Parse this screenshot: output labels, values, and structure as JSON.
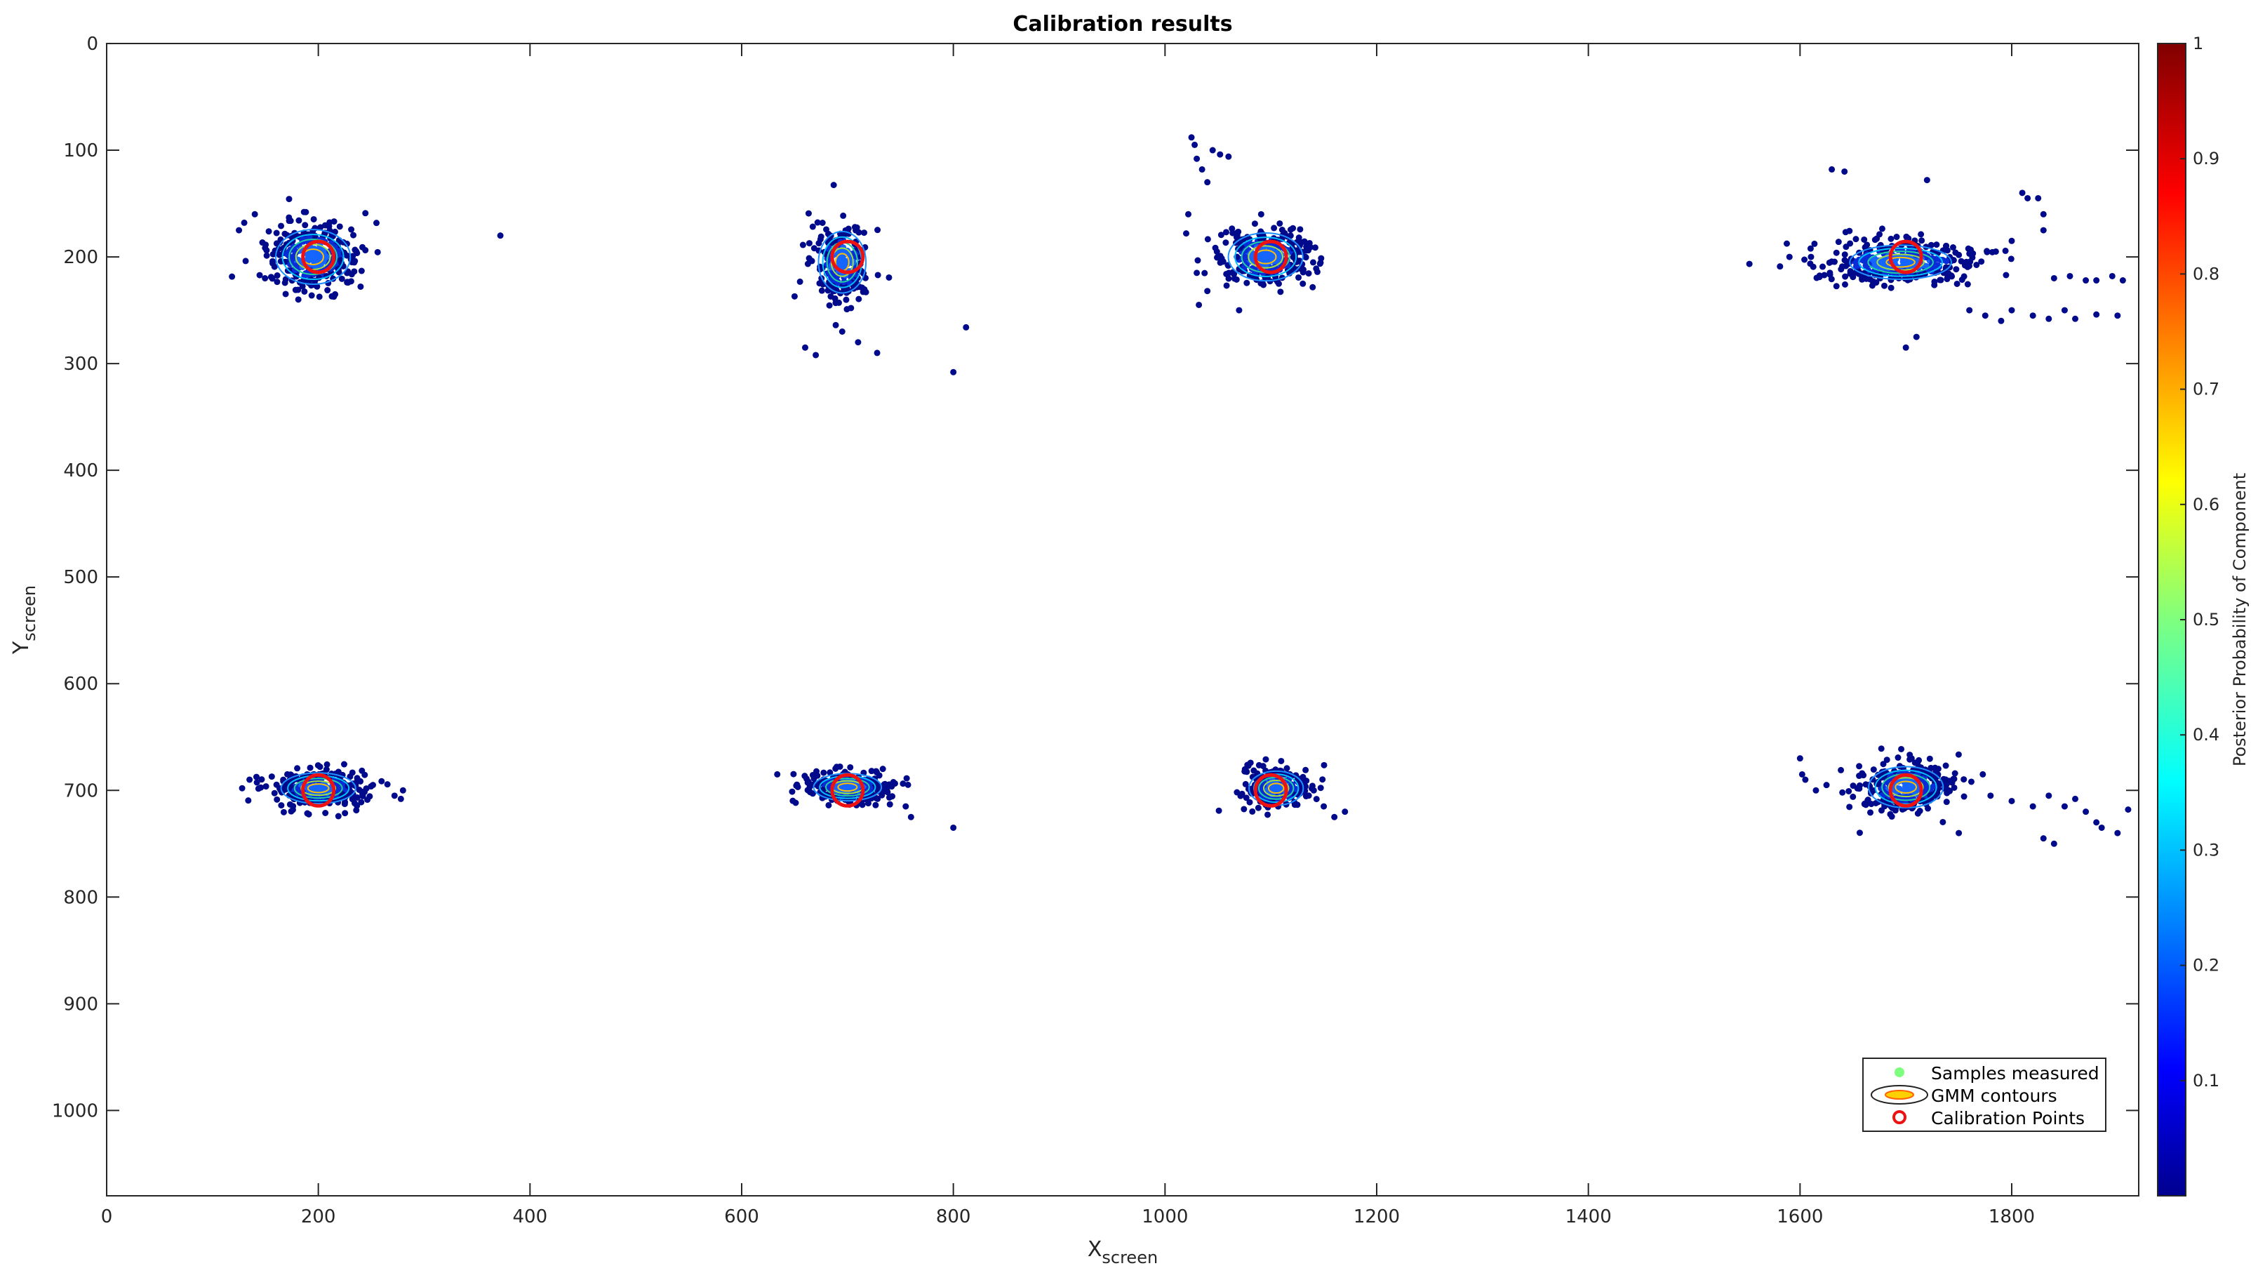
{
  "chart_data": {
    "type": "scatter",
    "title": "Calibration results",
    "xlabel": "X",
    "xlabel_sub": "screen",
    "ylabel": "Y",
    "ylabel_sub": "screen",
    "xlim": [
      0,
      1920
    ],
    "ylim": [
      0,
      1080
    ],
    "y_reversed": true,
    "xticks": [
      0,
      200,
      400,
      600,
      800,
      1000,
      1200,
      1400,
      1600,
      1800
    ],
    "yticks": [
      0,
      100,
      200,
      300,
      400,
      500,
      600,
      700,
      800,
      900,
      1000
    ],
    "grid": false,
    "legend": {
      "position": "bottom-right",
      "entries": [
        "Samples measured",
        "GMM contours",
        "Calibration Points"
      ]
    },
    "colorbar": {
      "label": "Posterior Probability of Component",
      "colormap": "jet",
      "range": [
        0,
        1
      ],
      "ticks": [
        0.1,
        0.2,
        0.3,
        0.4,
        0.5,
        0.6,
        0.7,
        0.8,
        0.9,
        1
      ]
    },
    "calibration_points": [
      {
        "x": 200,
        "y": 200
      },
      {
        "x": 700,
        "y": 200
      },
      {
        "x": 1100,
        "y": 200
      },
      {
        "x": 1700,
        "y": 200
      },
      {
        "x": 200,
        "y": 700
      },
      {
        "x": 700,
        "y": 700
      },
      {
        "x": 1100,
        "y": 700
      },
      {
        "x": 1700,
        "y": 700
      }
    ],
    "sample_clusters": [
      {
        "cx": 195,
        "cy": 200,
        "sx": 22,
        "sy": 16,
        "n": 320
      },
      {
        "cx": 695,
        "cy": 205,
        "sx": 14,
        "sy": 18,
        "n": 230
      },
      {
        "cx": 1095,
        "cy": 200,
        "sx": 22,
        "sy": 14,
        "n": 280
      },
      {
        "cx": 1695,
        "cy": 205,
        "sx": 38,
        "sy": 10,
        "n": 340
      },
      {
        "cx": 200,
        "cy": 698,
        "sx": 22,
        "sy": 9,
        "n": 300
      },
      {
        "cx": 700,
        "cy": 697,
        "sx": 20,
        "sy": 8,
        "n": 260
      },
      {
        "cx": 1105,
        "cy": 698,
        "sx": 16,
        "sy": 10,
        "n": 240
      },
      {
        "cx": 1700,
        "cy": 697,
        "sx": 22,
        "sy": 12,
        "n": 300
      }
    ],
    "outlier_samples": [
      [
        372,
        180
      ],
      [
        130,
        168
      ],
      [
        140,
        160
      ],
      [
        125,
        175
      ],
      [
        660,
        285
      ],
      [
        670,
        292
      ],
      [
        695,
        270
      ],
      [
        710,
        280
      ],
      [
        728,
        290
      ],
      [
        650,
        237
      ],
      [
        800,
        308
      ],
      [
        812,
        266
      ],
      [
        1025,
        88
      ],
      [
        1028,
        95
      ],
      [
        1030,
        108
      ],
      [
        1035,
        118
      ],
      [
        1040,
        130
      ],
      [
        1045,
        100
      ],
      [
        1052,
        104
      ],
      [
        1060,
        106
      ],
      [
        1022,
        160
      ],
      [
        1020,
        178
      ],
      [
        1030,
        215
      ],
      [
        1032,
        245
      ],
      [
        1040,
        232
      ],
      [
        1070,
        250
      ],
      [
        1630,
        118
      ],
      [
        1642,
        120
      ],
      [
        1720,
        128
      ],
      [
        1710,
        275
      ],
      [
        1700,
        285
      ],
      [
        1785,
        195
      ],
      [
        1800,
        185
      ],
      [
        1810,
        140
      ],
      [
        1815,
        145
      ],
      [
        1825,
        145
      ],
      [
        1830,
        160
      ],
      [
        1830,
        175
      ],
      [
        1760,
        250
      ],
      [
        1775,
        255
      ],
      [
        1790,
        260
      ],
      [
        1800,
        250
      ],
      [
        1820,
        255
      ],
      [
        1835,
        258
      ],
      [
        1850,
        250
      ],
      [
        1840,
        220
      ],
      [
        1855,
        218
      ],
      [
        1870,
        222
      ],
      [
        1880,
        222
      ],
      [
        1895,
        218
      ],
      [
        1905,
        222
      ],
      [
        1900,
        255
      ],
      [
        1880,
        254
      ],
      [
        1860,
        258
      ],
      [
        1590,
        200
      ],
      [
        128,
        698
      ],
      [
        135,
        690
      ],
      [
        272,
        705
      ],
      [
        280,
        700
      ],
      [
        278,
        708
      ],
      [
        800,
        735
      ],
      [
        755,
        715
      ],
      [
        760,
        725
      ],
      [
        1170,
        720
      ],
      [
        1160,
        725
      ],
      [
        1150,
        715
      ],
      [
        1600,
        670
      ],
      [
        1602,
        685
      ],
      [
        1605,
        690
      ],
      [
        1615,
        700
      ],
      [
        1625,
        695
      ],
      [
        1640,
        702
      ],
      [
        1650,
        706
      ],
      [
        1780,
        705
      ],
      [
        1800,
        710
      ],
      [
        1820,
        715
      ],
      [
        1835,
        705
      ],
      [
        1850,
        715
      ],
      [
        1860,
        708
      ],
      [
        1870,
        720
      ],
      [
        1880,
        730
      ],
      [
        1885,
        735
      ],
      [
        1900,
        740
      ],
      [
        1910,
        718
      ],
      [
        1840,
        750
      ],
      [
        1830,
        745
      ],
      [
        1750,
        740
      ]
    ]
  }
}
